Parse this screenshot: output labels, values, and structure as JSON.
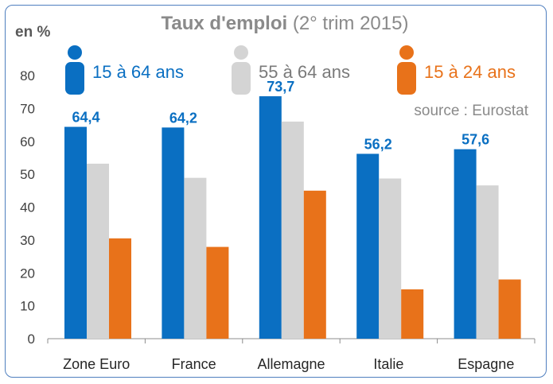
{
  "chart_data": {
    "type": "bar",
    "title_bold": "Taux d'emploi",
    "title_rest": " (2° trim 2015)",
    "ylabel": "en %",
    "source": "source : Eurostat",
    "categories": [
      "Zone Euro",
      "France",
      "Allemagne",
      "Italie",
      "Espagne"
    ],
    "ylim": [
      0,
      80
    ],
    "yticks": [
      0,
      10,
      20,
      30,
      40,
      50,
      60,
      70,
      80
    ],
    "grid": false,
    "legend_placement": "top",
    "series": [
      {
        "name": "15 à 64 ans",
        "color": "#0a6fc2",
        "values": [
          64.4,
          64.2,
          73.7,
          56.2,
          57.6
        ],
        "labels": [
          "64,4",
          "64,2",
          "73,7",
          "56,2",
          "57,6"
        ]
      },
      {
        "name": "55 à 64 ans",
        "color": "#d4d4d4",
        "text_color": "#7a7a7a",
        "values": [
          53.2,
          48.9,
          66.0,
          48.7,
          46.6
        ]
      },
      {
        "name": "15 à 24 ans",
        "color": "#e8721a",
        "values": [
          30.5,
          27.9,
          45.0,
          15.0,
          18.0
        ]
      }
    ]
  }
}
